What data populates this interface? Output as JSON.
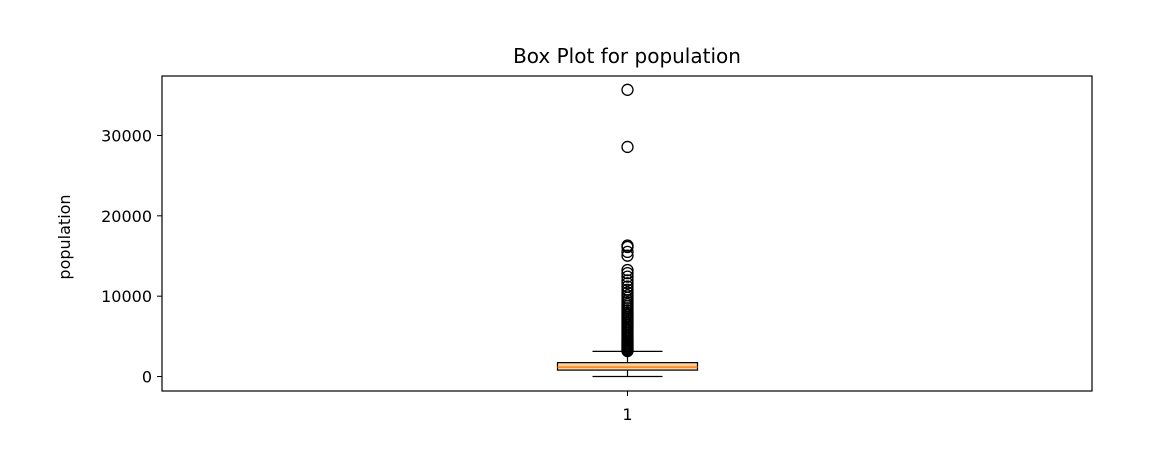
{
  "chart_data": {
    "type": "box",
    "title": "Box Plot for population",
    "xlabel": "",
    "ylabel": "population",
    "categories": [
      "1"
    ],
    "ylim": [
      -1800,
      37400
    ],
    "yticks": [
      0,
      10000,
      20000,
      30000
    ],
    "ytick_labels": [
      "0",
      "10000",
      "20000",
      "30000"
    ],
    "grid": false,
    "legend": "none",
    "box": {
      "q1": 800,
      "median": 1170,
      "q3": 1730,
      "whisker_low": 3,
      "whisker_high": 3130
    },
    "outliers": [
      35680,
      28570,
      16300,
      16120,
      15510,
      15040,
      13250,
      12870,
      12430,
      11970,
      11600,
      11200,
      10800,
      10450,
      10100,
      9800,
      9500,
      9250,
      9000,
      8750,
      8500,
      8250,
      8000,
      7800,
      7600,
      7400,
      7200,
      7000,
      6800,
      6600,
      6400,
      6200,
      6000,
      5800,
      5600,
      5400,
      5200,
      5000,
      4800,
      4600,
      4400,
      4250,
      4100,
      3950,
      3800,
      3650,
      3500,
      3380,
      3260,
      3180
    ],
    "colors": {
      "box_fill": "#ffd19b",
      "median": "#ff7f0e",
      "lines": "#000000"
    }
  }
}
